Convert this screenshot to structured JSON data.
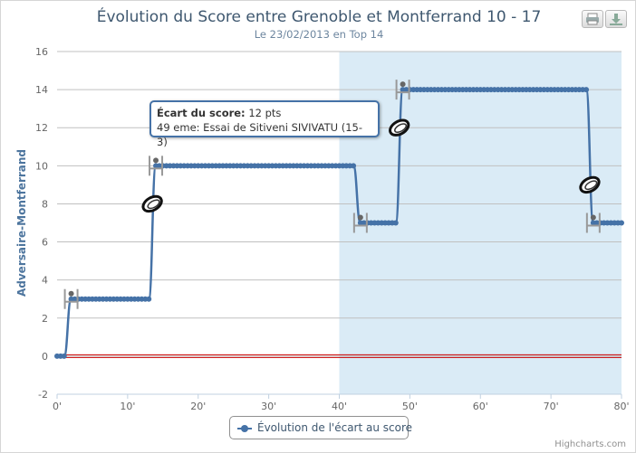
{
  "chart_data": {
    "type": "line",
    "title": "Évolution du Score entre Grenoble et Montferrand 10 - 17",
    "subtitle": "Le 23/02/2013 en Top 14",
    "ylabel": "Adversaire-Montferrand",
    "xlabel": "",
    "xlim": [
      0,
      80
    ],
    "ylim": [
      -2,
      16
    ],
    "x_ticks": [
      "0'",
      "10'",
      "20'",
      "30'",
      "40'",
      "50'",
      "60'",
      "70'",
      "80'"
    ],
    "y_ticks": [
      "-2",
      "0",
      "2",
      "4",
      "6",
      "8",
      "10",
      "12",
      "14",
      "16"
    ],
    "grid": true,
    "legend_position": "bottom-center",
    "plot_band": {
      "from": 40,
      "to": 80,
      "color": "#daebf6"
    },
    "reference_line": {
      "y": 0,
      "color": "#cc0000"
    },
    "series": [
      {
        "name": "Évolution de l'écart au score",
        "color": "#4572a7",
        "steps": [
          {
            "x": 0,
            "y": 0
          },
          {
            "x": 1,
            "y": 0
          },
          {
            "x": 2,
            "y": 3
          },
          {
            "x": 13,
            "y": 3
          },
          {
            "x": 14,
            "y": 10
          },
          {
            "x": 42,
            "y": 10
          },
          {
            "x": 43,
            "y": 7
          },
          {
            "x": 48,
            "y": 7
          },
          {
            "x": 49,
            "y": 14
          },
          {
            "x": 75,
            "y": 14
          },
          {
            "x": 76,
            "y": 7
          },
          {
            "x": 80,
            "y": 7
          }
        ]
      }
    ],
    "event_markers": [
      {
        "x": 2,
        "y": 3,
        "icon": "goal-post-icon"
      },
      {
        "x": 14,
        "y": 10,
        "icon": "goal-post-icon"
      },
      {
        "x": 13.5,
        "y": 8,
        "icon": "rugby-ball-icon"
      },
      {
        "x": 43,
        "y": 7,
        "icon": "goal-post-icon"
      },
      {
        "x": 49,
        "y": 14,
        "icon": "goal-post-icon"
      },
      {
        "x": 48.5,
        "y": 12,
        "icon": "rugby-ball-icon"
      },
      {
        "x": 75.5,
        "y": 9,
        "icon": "rugby-ball-icon"
      },
      {
        "x": 76,
        "y": 7,
        "icon": "goal-post-icon"
      }
    ]
  },
  "tooltip": {
    "label": "Écart du score:",
    "value": "12 pts",
    "detail": "49 eme: Essai de Sitiveni SIVIVATU (15-3)"
  },
  "legend": {
    "label": "Évolution de l'écart au score"
  },
  "credits": "Highcharts.com",
  "toolbar": {
    "print_icon": "printer-icon",
    "export_icon": "download-icon"
  }
}
